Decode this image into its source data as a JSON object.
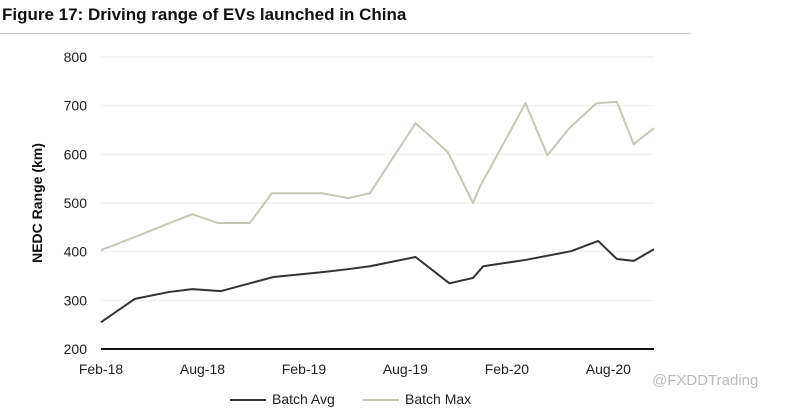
{
  "chart_data": {
    "type": "line",
    "title": "Figure 17: Driving range of EVs launched in China",
    "xlabel": "",
    "ylabel": "NEDC Range (km)",
    "ylim": [
      200,
      800
    ],
    "yticks": [
      200,
      300,
      400,
      500,
      600,
      700,
      800
    ],
    "x_unit": "months since Feb-18",
    "xlim": [
      0,
      32.7
    ],
    "xticks": [
      {
        "label": "Feb-18",
        "x": 0
      },
      {
        "label": "Aug-18",
        "x": 6
      },
      {
        "label": "Feb-19",
        "x": 12
      },
      {
        "label": "Aug-19",
        "x": 18
      },
      {
        "label": "Feb-20",
        "x": 24
      },
      {
        "label": "Aug-20",
        "x": 30
      }
    ],
    "grid": true,
    "legend_position": "bottom",
    "series": [
      {
        "name": "Batch Avg",
        "color": "#333333",
        "points": [
          [
            0,
            255
          ],
          [
            2,
            303
          ],
          [
            4,
            317
          ],
          [
            5.4,
            323
          ],
          [
            7.1,
            319
          ],
          [
            8.8,
            335
          ],
          [
            10.2,
            348
          ],
          [
            13.1,
            358
          ],
          [
            14.6,
            364
          ],
          [
            15.9,
            370
          ],
          [
            18.6,
            389
          ],
          [
            20.6,
            335
          ],
          [
            22,
            346
          ],
          [
            22.6,
            370
          ],
          [
            25.1,
            383
          ],
          [
            27.8,
            401
          ],
          [
            29.4,
            422
          ],
          [
            30.5,
            385
          ],
          [
            31.5,
            381
          ],
          [
            32.7,
            405
          ]
        ]
      },
      {
        "name": "Batch Max",
        "color": "#c8c6b6",
        "points": [
          [
            0,
            403
          ],
          [
            2,
            430
          ],
          [
            4,
            458
          ],
          [
            5.4,
            477
          ],
          [
            6.9,
            459
          ],
          [
            8.8,
            459
          ],
          [
            10.1,
            520
          ],
          [
            13.1,
            520
          ],
          [
            14.6,
            510
          ],
          [
            15.9,
            520
          ],
          [
            18.6,
            664
          ],
          [
            20.5,
            605
          ],
          [
            22,
            500
          ],
          [
            22.4,
            533
          ],
          [
            25.1,
            705
          ],
          [
            26.4,
            598
          ],
          [
            27.7,
            654
          ],
          [
            29.3,
            705
          ],
          [
            30.5,
            708
          ],
          [
            31.5,
            621
          ],
          [
            32.7,
            654
          ]
        ]
      }
    ]
  },
  "watermark": "@FXDDTrading"
}
